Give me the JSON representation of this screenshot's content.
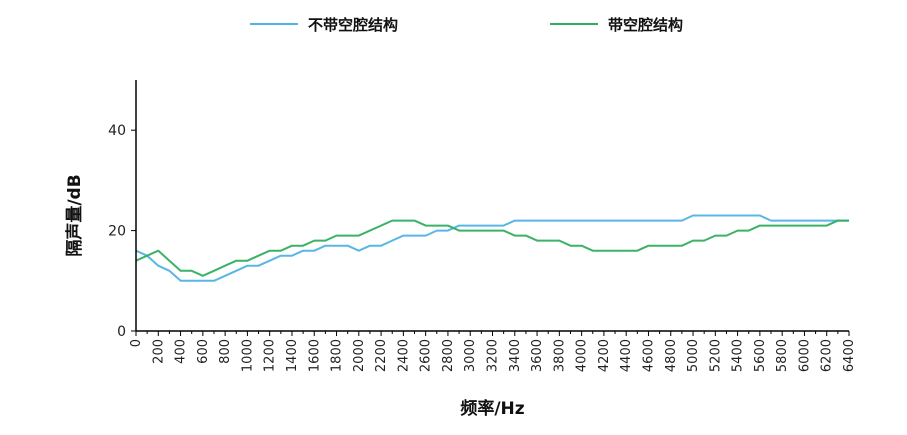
{
  "chart_data": {
    "type": "line",
    "xlabel": "频率/Hz",
    "ylabel": "隔声量/dB",
    "xlim": [
      0,
      6400
    ],
    "ylim": [
      0,
      50
    ],
    "x_ticks": [
      "0",
      "200",
      "400",
      "600",
      "800",
      "1000",
      "1200",
      "1400",
      "1600",
      "1800",
      "2000",
      "2200",
      "2400",
      "2600",
      "2800",
      "3000",
      "3200",
      "3400",
      "3600",
      "3800",
      "4000",
      "4200",
      "4400",
      "4600",
      "4800",
      "5000",
      "5200",
      "5400",
      "5600",
      "5800",
      "6000",
      "6200",
      "6400"
    ],
    "y_ticks": [
      "0",
      "20",
      "40"
    ],
    "legend_position": "top",
    "grid": false,
    "series": [
      {
        "name": "不带空腔结构",
        "color": "#4fb3e3",
        "x": [
          0,
          100,
          200,
          300,
          400,
          500,
          600,
          700,
          800,
          900,
          1000,
          1100,
          1200,
          1300,
          1400,
          1500,
          1600,
          1700,
          1800,
          1900,
          2000,
          2100,
          2200,
          2300,
          2400,
          2500,
          2600,
          2700,
          2800,
          2900,
          3000,
          3100,
          3200,
          3300,
          3400,
          3500,
          3600,
          3700,
          3800,
          3900,
          4000,
          4100,
          4200,
          4300,
          4400,
          4500,
          4600,
          4700,
          4800,
          4900,
          5000,
          5100,
          5200,
          5300,
          5400,
          5500,
          5600,
          5700,
          5800,
          5900,
          6000,
          6100,
          6200,
          6300,
          6400
        ],
        "values": [
          16,
          15,
          13,
          12,
          10,
          10,
          10,
          10,
          11,
          12,
          13,
          13,
          14,
          15,
          15,
          16,
          16,
          17,
          17,
          17,
          16,
          17,
          17,
          18,
          19,
          19,
          19,
          20,
          20,
          21,
          21,
          21,
          21,
          21,
          22,
          22,
          22,
          22,
          22,
          22,
          22,
          22,
          22,
          22,
          22,
          22,
          22,
          22,
          22,
          22,
          23,
          23,
          23,
          23,
          23,
          23,
          23,
          22,
          22,
          22,
          22,
          22,
          22,
          22,
          22
        ]
      },
      {
        "name": "带空腔结构",
        "color": "#2fae5f",
        "x": [
          0,
          100,
          200,
          300,
          400,
          500,
          600,
          700,
          800,
          900,
          1000,
          1100,
          1200,
          1300,
          1400,
          1500,
          1600,
          1700,
          1800,
          1900,
          2000,
          2100,
          2200,
          2300,
          2400,
          2500,
          2600,
          2700,
          2800,
          2900,
          3000,
          3100,
          3200,
          3300,
          3400,
          3500,
          3600,
          3700,
          3800,
          3900,
          4000,
          4100,
          4200,
          4300,
          4400,
          4500,
          4600,
          4700,
          4800,
          4900,
          5000,
          5100,
          5200,
          5300,
          5400,
          5500,
          5600,
          5700,
          5800,
          5900,
          6000,
          6100,
          6200,
          6300,
          6400
        ],
        "values": [
          14,
          15,
          16,
          14,
          12,
          12,
          11,
          12,
          13,
          14,
          14,
          15,
          16,
          16,
          17,
          17,
          18,
          18,
          19,
          19,
          19,
          20,
          21,
          22,
          22,
          22,
          21,
          21,
          21,
          20,
          20,
          20,
          20,
          20,
          19,
          19,
          18,
          18,
          18,
          17,
          17,
          16,
          16,
          16,
          16,
          16,
          17,
          17,
          17,
          17,
          18,
          18,
          19,
          19,
          20,
          20,
          21,
          21,
          21,
          21,
          21,
          21,
          21,
          22,
          22
        ]
      }
    ]
  }
}
